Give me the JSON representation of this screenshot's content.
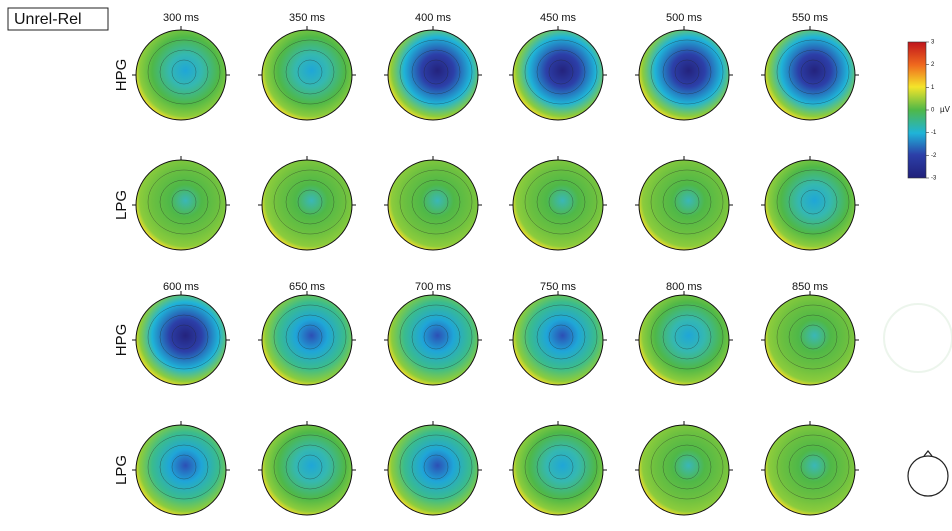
{
  "panel_label": "Unrel-Rel",
  "blocks": [
    {
      "times": [
        "300 ms",
        "350 ms",
        "400 ms",
        "450 ms",
        "500 ms",
        "550 ms"
      ],
      "rows": [
        "HPG",
        "LPG"
      ]
    },
    {
      "times": [
        "600 ms",
        "650 ms",
        "700 ms",
        "750 ms",
        "800 ms",
        "850 ms"
      ],
      "rows": [
        "HPG",
        "LPG"
      ]
    }
  ],
  "colorbar": {
    "ticks": [
      3,
      2,
      1,
      0,
      -1,
      -2,
      -3
    ],
    "unit": "µV"
  }
}
